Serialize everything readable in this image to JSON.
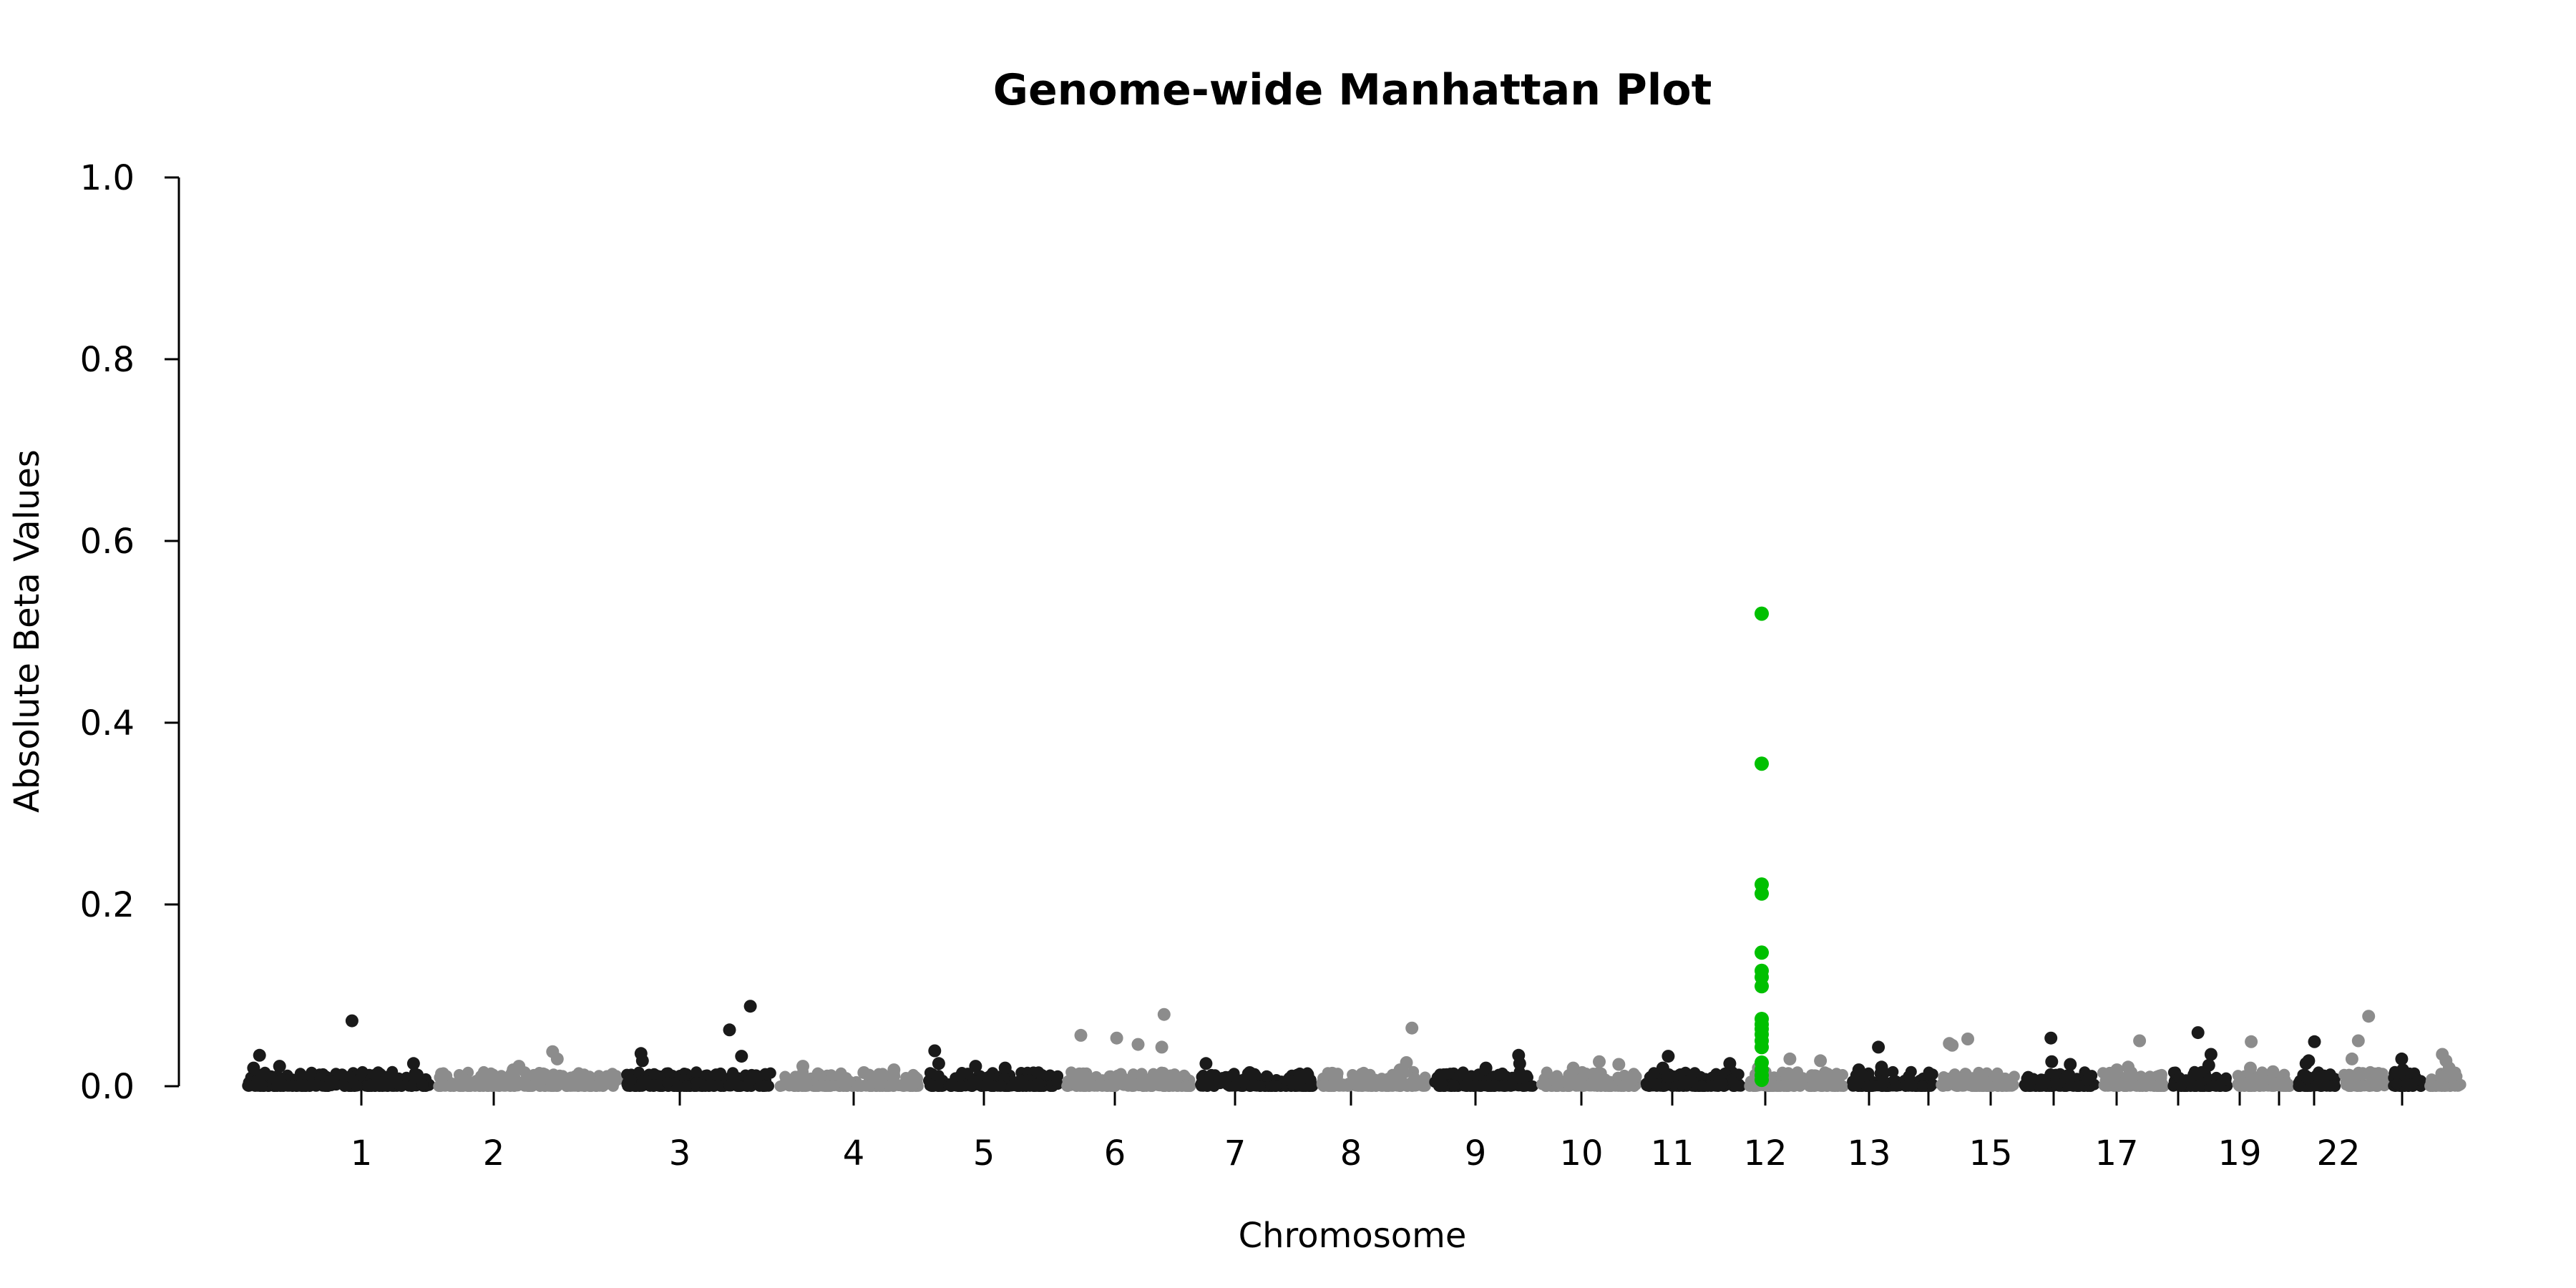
{
  "chart_data": {
    "type": "scatter",
    "title": "Genome-wide Manhattan Plot",
    "xlabel": "Chromosome",
    "ylabel": "Absolute Beta Values",
    "ylim": [
      0,
      1.0
    ],
    "yticks": [
      "0.0",
      "0.2",
      "0.4",
      "0.6",
      "0.8",
      "1.0"
    ],
    "xtick_labels": [
      "1",
      "2",
      "3",
      "4",
      "5",
      "6",
      "7",
      "8",
      "9",
      "10",
      "11",
      "12",
      "13",
      "15",
      "17",
      "19",
      "22"
    ],
    "grid": false,
    "legend": "none",
    "colors": {
      "odd": "#1a1a1a",
      "even": "#8c8c8c",
      "highlight": "#00c000"
    },
    "chromosomes": [
      {
        "chr": "1",
        "peaks": [
          0.072,
          0.034,
          0.025,
          0.022,
          0.02
        ]
      },
      {
        "chr": "2",
        "peaks": [
          0.038,
          0.03,
          0.022,
          0.018
        ]
      },
      {
        "chr": "3",
        "peaks": [
          0.088,
          0.062,
          0.036,
          0.033,
          0.028
        ]
      },
      {
        "chr": "4",
        "peaks": [
          0.022,
          0.018,
          0.015
        ]
      },
      {
        "chr": "5",
        "peaks": [
          0.039,
          0.025,
          0.022,
          0.02
        ]
      },
      {
        "chr": "6",
        "peaks": [
          0.079,
          0.056,
          0.053,
          0.046,
          0.043
        ]
      },
      {
        "chr": "7",
        "peaks": [
          0.025,
          0.015,
          0.012
        ]
      },
      {
        "chr": "8",
        "peaks": [
          0.064,
          0.026,
          0.018
        ]
      },
      {
        "chr": "9",
        "peaks": [
          0.034,
          0.025,
          0.02
        ]
      },
      {
        "chr": "10",
        "peaks": [
          0.027,
          0.024,
          0.02
        ]
      },
      {
        "chr": "11",
        "peaks": [
          0.033,
          0.025,
          0.02
        ]
      },
      {
        "chr": "12",
        "peaks": [
          0.03,
          0.028,
          0.02
        ]
      },
      {
        "chr": "13",
        "peaks": [
          0.043,
          0.021,
          0.018
        ]
      },
      {
        "chr": "14",
        "peaks": [
          0.052,
          0.047,
          0.045
        ]
      },
      {
        "chr": "15",
        "peaks": [
          0.053,
          0.027,
          0.024
        ]
      },
      {
        "chr": "16",
        "peaks": [
          0.05,
          0.021,
          0.018
        ]
      },
      {
        "chr": "17",
        "peaks": [
          0.059,
          0.035,
          0.023
        ]
      },
      {
        "chr": "18",
        "peaks": [
          0.049,
          0.02,
          0.016
        ]
      },
      {
        "chr": "19",
        "peaks": [
          0.049,
          0.028,
          0.025
        ]
      },
      {
        "chr": "20",
        "peaks": [
          0.077,
          0.05,
          0.03
        ]
      },
      {
        "chr": "21",
        "peaks": [
          0.03,
          0.018
        ]
      },
      {
        "chr": "22",
        "peaks": [
          0.035,
          0.028,
          0.02
        ]
      }
    ],
    "highlight_points": {
      "chr": "12",
      "values": [
        0.52,
        0.355,
        0.222,
        0.212,
        0.147,
        0.127,
        0.12,
        0.11,
        0.074,
        0.068,
        0.063,
        0.057,
        0.05,
        0.043,
        0.026,
        0.018,
        0.012,
        0.007
      ]
    }
  }
}
